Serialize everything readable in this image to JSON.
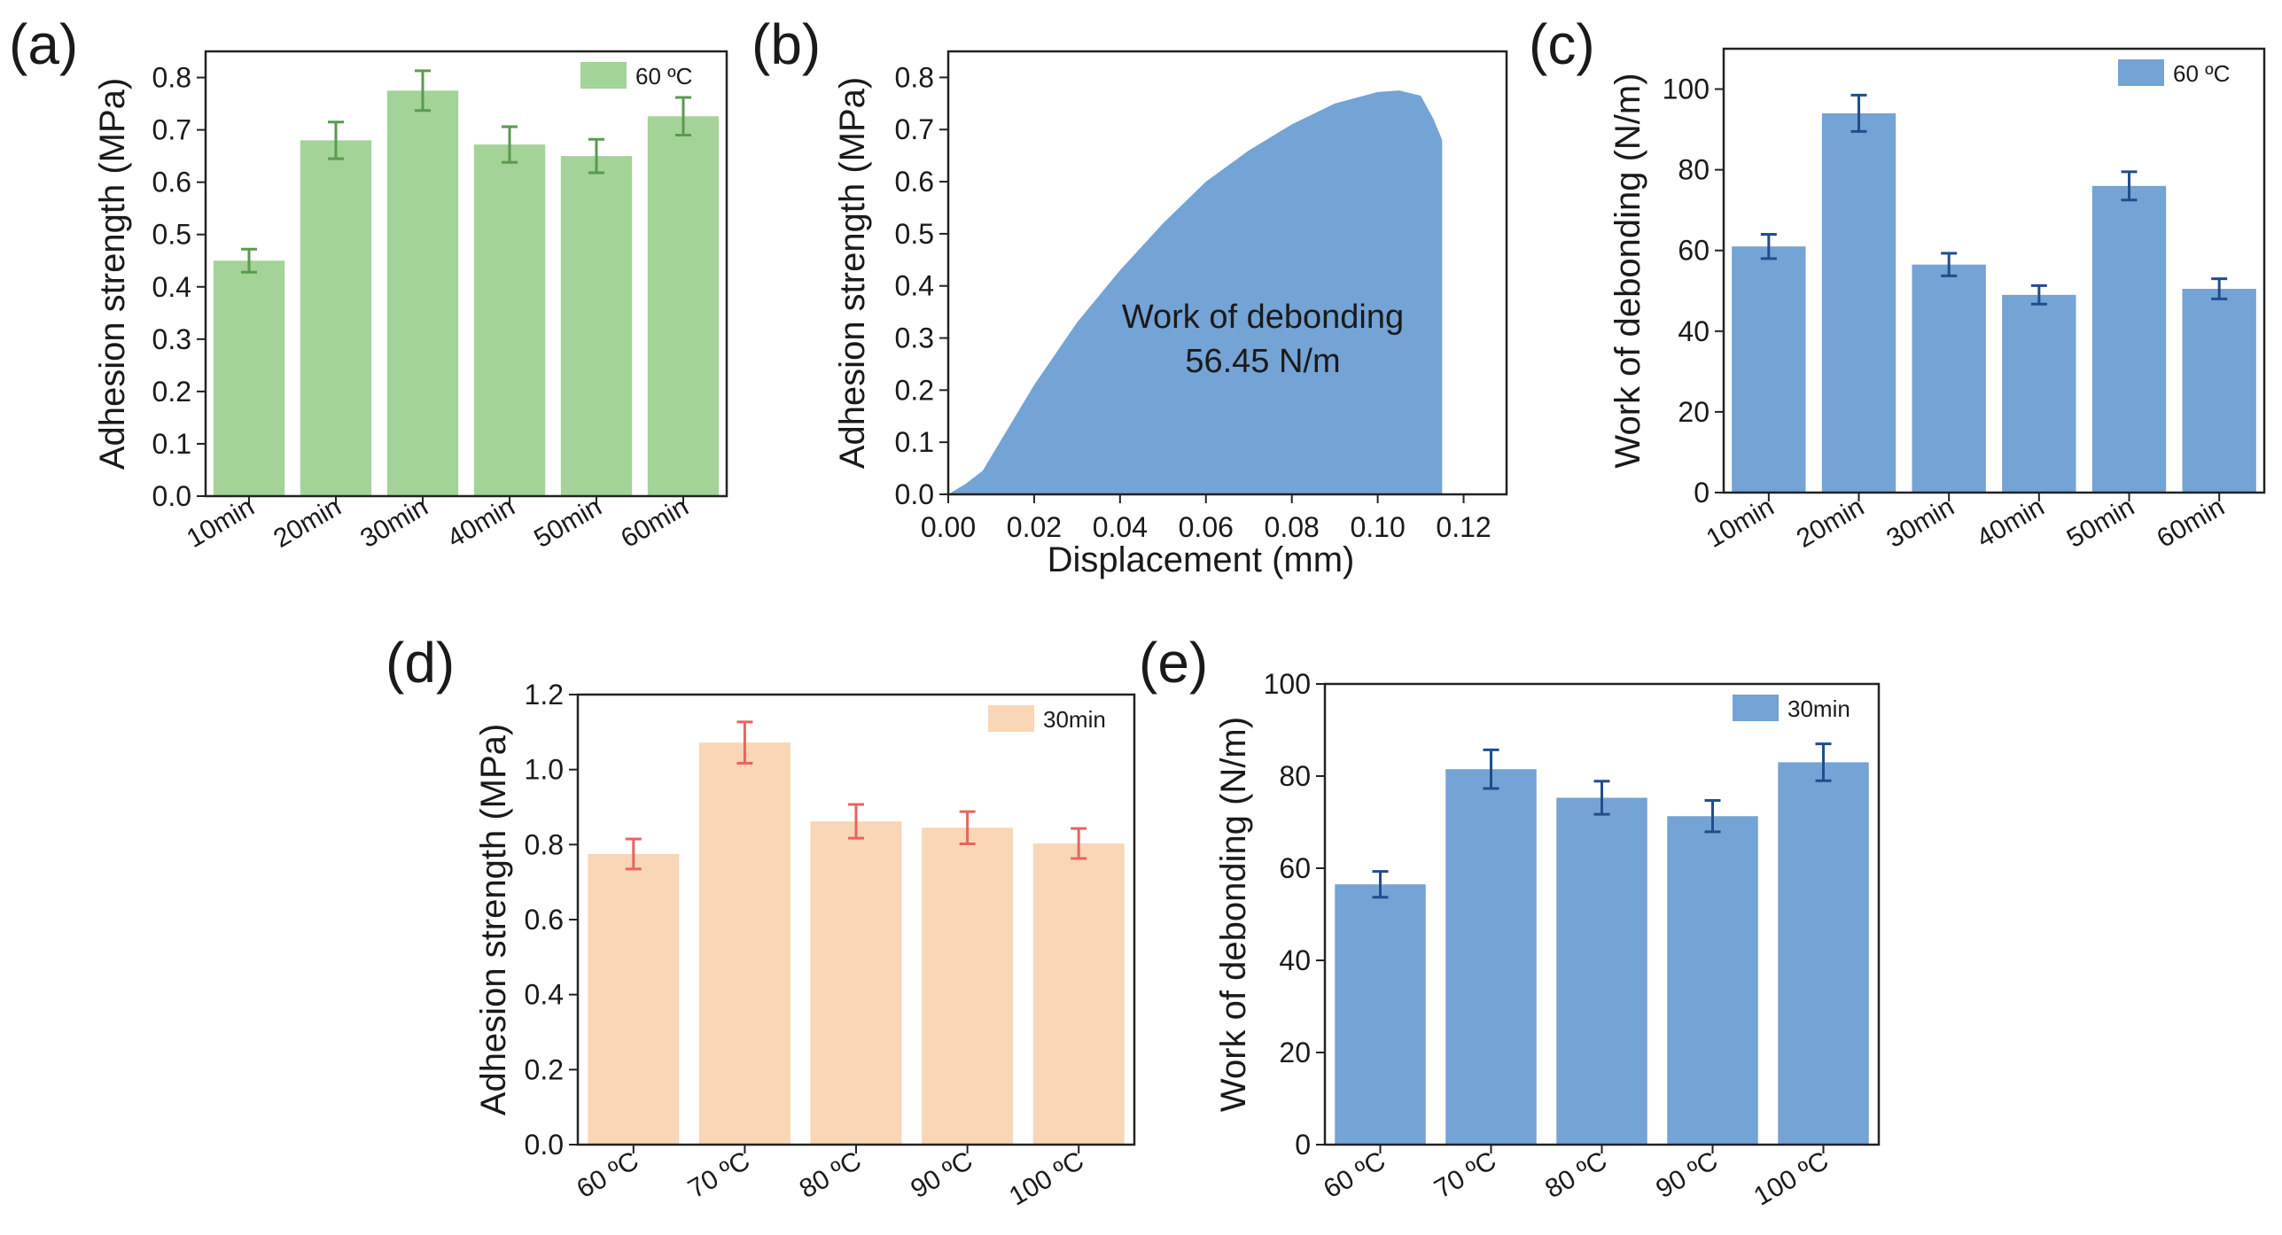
{
  "chart_data": [
    {
      "panel": "(a)",
      "type": "bar",
      "categories": [
        "10min",
        "20min",
        "30min",
        "40min",
        "50min",
        "60min"
      ],
      "values": [
        0.45,
        0.68,
        0.775,
        0.672,
        0.65,
        0.726
      ],
      "errors": [
        0.022,
        0.035,
        0.038,
        0.034,
        0.032,
        0.036
      ],
      "ylabel": "Adhesion strength (MPa)",
      "xlabel": "",
      "ylim": [
        0,
        0.85
      ],
      "yticks": [
        0.0,
        0.1,
        0.2,
        0.3,
        0.4,
        0.5,
        0.6,
        0.7,
        0.8
      ],
      "ytick_labels": [
        "0.0",
        "0.1",
        "0.2",
        "0.3",
        "0.4",
        "0.5",
        "0.6",
        "0.7",
        "0.8"
      ],
      "legend": "60 ºC",
      "bar_color": "#a3d397",
      "error_color": "#5a9a4e"
    },
    {
      "panel": "(b)",
      "type": "area",
      "x": [
        0.0,
        0.004,
        0.008,
        0.012,
        0.02,
        0.03,
        0.04,
        0.05,
        0.06,
        0.07,
        0.08,
        0.09,
        0.1,
        0.105,
        0.11,
        0.113,
        0.115,
        0.115
      ],
      "y": [
        0.0,
        0.02,
        0.045,
        0.1,
        0.21,
        0.33,
        0.43,
        0.52,
        0.6,
        0.66,
        0.71,
        0.75,
        0.772,
        0.775,
        0.765,
        0.72,
        0.68,
        0.0
      ],
      "xlabel": "Displacement (mm)",
      "ylabel": "Adhesion strength (MPa)",
      "xlim": [
        0,
        0.13
      ],
      "ylim": [
        0,
        0.85
      ],
      "xticks": [
        0.0,
        0.02,
        0.04,
        0.06,
        0.08,
        0.1,
        0.12
      ],
      "xtick_labels": [
        "0.00",
        "0.02",
        "0.04",
        "0.06",
        "0.08",
        "0.10",
        "0.12"
      ],
      "yticks": [
        0.0,
        0.1,
        0.2,
        0.3,
        0.4,
        0.5,
        0.6,
        0.7,
        0.8
      ],
      "ytick_labels": [
        "0.0",
        "0.1",
        "0.2",
        "0.3",
        "0.4",
        "0.5",
        "0.6",
        "0.7",
        "0.8"
      ],
      "annotation": [
        "Work of debonding",
        "56.45 N/m"
      ],
      "fill_color": "#74a3d5"
    },
    {
      "panel": "(c)",
      "type": "bar",
      "categories": [
        "10min",
        "20min",
        "30min",
        "40min",
        "50min",
        "60min"
      ],
      "values": [
        61,
        94,
        56.5,
        49,
        76,
        50.5
      ],
      "errors": [
        3,
        4.5,
        2.8,
        2.3,
        3.5,
        2.5
      ],
      "ylabel": "Work of debonding (N/m)",
      "xlabel": "",
      "ylim": [
        0,
        110
      ],
      "yticks": [
        0,
        20,
        40,
        60,
        80,
        100
      ],
      "ytick_labels": [
        "0",
        "20",
        "40",
        "60",
        "80",
        "100"
      ],
      "legend": "60 ºC",
      "bar_color": "#74a3d5",
      "error_color": "#1f4e8c"
    },
    {
      "panel": "(d)",
      "type": "bar",
      "categories": [
        "60 ºC",
        "70 ºC",
        "80 ºC",
        "90 ºC",
        "100 ºC"
      ],
      "values": [
        0.775,
        1.072,
        0.862,
        0.845,
        0.803
      ],
      "errors": [
        0.04,
        0.055,
        0.045,
        0.043,
        0.04
      ],
      "ylabel": "Adhesion strength (MPa)",
      "xlabel": "",
      "ylim": [
        0,
        1.2
      ],
      "yticks": [
        0.0,
        0.2,
        0.4,
        0.6,
        0.8,
        1.0,
        1.2
      ],
      "ytick_labels": [
        "0.0",
        "0.2",
        "0.4",
        "0.6",
        "0.8",
        "1.0",
        "1.2"
      ],
      "legend": "30min",
      "bar_color": "#f9d6b6",
      "error_color": "#e8655d"
    },
    {
      "panel": "(e)",
      "type": "bar",
      "categories": [
        "60 ºC",
        "70 ºC",
        "80 ºC",
        "90 ºC",
        "100 ºC"
      ],
      "values": [
        56.5,
        81.5,
        75.3,
        71.3,
        83
      ],
      "errors": [
        2.8,
        4.2,
        3.6,
        3.4,
        4.0
      ],
      "ylabel": "Work of debonding (N/m)",
      "xlabel": "",
      "ylim": [
        0,
        100
      ],
      "yticks": [
        0,
        20,
        40,
        60,
        80,
        100
      ],
      "ytick_labels": [
        "0",
        "20",
        "40",
        "60",
        "80",
        "100"
      ],
      "legend": "30min",
      "bar_color": "#74a3d5",
      "error_color": "#1f4e8c"
    }
  ]
}
